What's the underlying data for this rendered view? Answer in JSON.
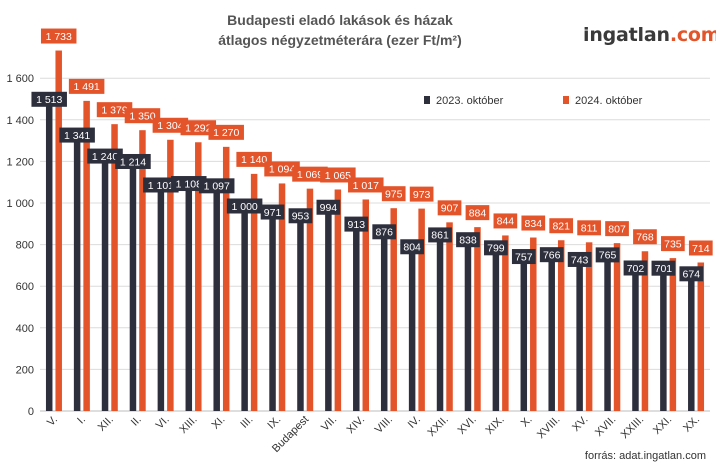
{
  "chart_data": {
    "type": "bar",
    "title": "Budapesti eladó lakások és házak",
    "subtitle": "átlagos négyzetméterára (ezer Ft/m²)",
    "categories": [
      "V.",
      "I.",
      "XII.",
      "II.",
      "VI.",
      "XIII.",
      "XI.",
      "III.",
      "IX.",
      "Budapest",
      "VII.",
      "XIV.",
      "VIII.",
      "IV.",
      "XXII.",
      "XVI.",
      "XIX.",
      "X.",
      "XVIII.",
      "XV.",
      "XVII.",
      "XXIII.",
      "XXI.",
      "XX."
    ],
    "series": [
      {
        "name": "2023. október",
        "color": "#2d2f3d",
        "values": [
          1513,
          1341,
          1240,
          1214,
          1101,
          1108,
          1097,
          1000,
          971,
          953,
          994,
          913,
          876,
          804,
          861,
          838,
          799,
          757,
          766,
          743,
          765,
          702,
          701,
          674
        ],
        "labels": [
          "1 513",
          "1 341",
          "1 240",
          "1 214",
          "1 101",
          "1 108",
          "1 097",
          "1 000",
          "971",
          "953",
          "994",
          "913",
          "876",
          "804",
          "861",
          "838",
          "799",
          "757",
          "766",
          "743",
          "765",
          "702",
          "701",
          "674"
        ]
      },
      {
        "name": "2024. október",
        "color": "#e3542a",
        "values": [
          1733,
          1491,
          1379,
          1350,
          1304,
          1292,
          1270,
          1140,
          1094,
          1069,
          1065,
          1017,
          975,
          973,
          907,
          884,
          844,
          834,
          821,
          811,
          807,
          768,
          735,
          714
        ],
        "labels": [
          "1 733",
          "1 491",
          "1 379",
          "1 350",
          "1 304",
          "1 292",
          "1 270",
          "1 140",
          "1 094",
          "1 069",
          "1 065",
          "1 017",
          "975",
          "973",
          "907",
          "884",
          "844",
          "834",
          "821",
          "811",
          "807",
          "768",
          "735",
          "714"
        ]
      }
    ],
    "yticks": [
      0,
      200,
      400,
      600,
      800,
      1000,
      1200,
      1400,
      1600
    ],
    "ytick_labels": [
      "0",
      "200",
      "400",
      "600",
      "800",
      "1 000",
      "1 200",
      "1 400",
      "1 600"
    ],
    "ylim": [
      0,
      1750
    ],
    "grid": true,
    "legend_position": "top-right"
  },
  "brand": {
    "part1": "ingatlan",
    "part2": ".com"
  },
  "source": "forrás: adat.ingatlan.com"
}
